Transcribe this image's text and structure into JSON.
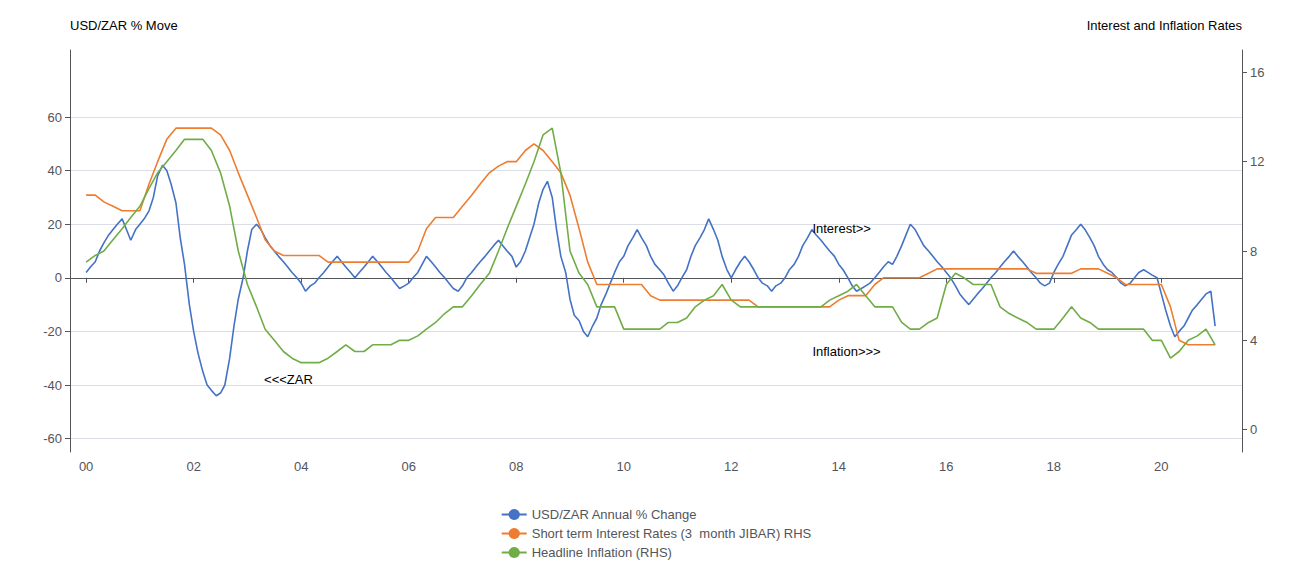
{
  "chart_data": {
    "type": "line",
    "ylabel": "USD/ZAR % Move",
    "y2label": "Interest and Inflation Rates",
    "xlim": [
      1999.7,
      2021.5
    ],
    "xticks": [
      {
        "value": 2000,
        "label": "00"
      },
      {
        "value": 2002,
        "label": "02"
      },
      {
        "value": 2004,
        "label": "04"
      },
      {
        "value": 2006,
        "label": "06"
      },
      {
        "value": 2008,
        "label": "08"
      },
      {
        "value": 2010,
        "label": "10"
      },
      {
        "value": 2012,
        "label": "12"
      },
      {
        "value": 2014,
        "label": "14"
      },
      {
        "value": 2016,
        "label": "16"
      },
      {
        "value": 2018,
        "label": "18"
      },
      {
        "value": 2020,
        "label": "20"
      }
    ],
    "ylim": [
      -65,
      85
    ],
    "yticks": [
      -60,
      -40,
      -20,
      0,
      20,
      40,
      60
    ],
    "y2lim": [
      -1,
      17
    ],
    "y2ticks": [
      0,
      4,
      8,
      12,
      16
    ],
    "grid": true,
    "legend": "bottom",
    "annotations": [
      {
        "text": "<<<ZAR",
        "x": 2003.3,
        "y": -38
      },
      {
        "text": "Interest>>",
        "x": 2013.5,
        "y": 9.0,
        "axis": "y2"
      },
      {
        "text": "Inflation>>>",
        "x": 2013.5,
        "y": 3.5,
        "axis": "y2"
      }
    ],
    "series": [
      {
        "name": "USD/ZAR Annual % Change",
        "color": "#4472C4",
        "x": [
          2000.0,
          2000.08,
          2000.17,
          2000.25,
          2000.33,
          2000.42,
          2000.5,
          2000.58,
          2000.67,
          2000.75,
          2000.83,
          2000.92,
          2001.0,
          2001.08,
          2001.17,
          2001.25,
          2001.33,
          2001.42,
          2001.5,
          2001.58,
          2001.67,
          2001.75,
          2001.83,
          2001.92,
          2002.0,
          2002.08,
          2002.17,
          2002.25,
          2002.33,
          2002.42,
          2002.5,
          2002.58,
          2002.67,
          2002.75,
          2002.83,
          2002.92,
          2003.0,
          2003.08,
          2003.17,
          2003.25,
          2003.33,
          2003.42,
          2003.5,
          2003.58,
          2003.67,
          2003.75,
          2003.83,
          2003.92,
          2004.0,
          2004.08,
          2004.17,
          2004.25,
          2004.33,
          2004.42,
          2004.5,
          2004.58,
          2004.67,
          2004.75,
          2004.83,
          2004.92,
          2005.0,
          2005.08,
          2005.17,
          2005.25,
          2005.33,
          2005.42,
          2005.5,
          2005.58,
          2005.67,
          2005.75,
          2005.83,
          2005.92,
          2006.0,
          2006.08,
          2006.17,
          2006.25,
          2006.33,
          2006.42,
          2006.5,
          2006.58,
          2006.67,
          2006.75,
          2006.83,
          2006.92,
          2007.0,
          2007.08,
          2007.17,
          2007.25,
          2007.33,
          2007.42,
          2007.5,
          2007.58,
          2007.67,
          2007.75,
          2007.83,
          2007.92,
          2008.0,
          2008.08,
          2008.17,
          2008.25,
          2008.33,
          2008.42,
          2008.5,
          2008.58,
          2008.67,
          2008.75,
          2008.83,
          2008.92,
          2009.0,
          2009.08,
          2009.17,
          2009.25,
          2009.33,
          2009.42,
          2009.5,
          2009.58,
          2009.67,
          2009.75,
          2009.83,
          2009.92,
          2010.0,
          2010.08,
          2010.17,
          2010.25,
          2010.33,
          2010.42,
          2010.5,
          2010.58,
          2010.67,
          2010.75,
          2010.83,
          2010.92,
          2011.0,
          2011.08,
          2011.17,
          2011.25,
          2011.33,
          2011.42,
          2011.5,
          2011.58,
          2011.67,
          2011.75,
          2011.83,
          2011.92,
          2012.0,
          2012.08,
          2012.17,
          2012.25,
          2012.33,
          2012.42,
          2012.5,
          2012.58,
          2012.67,
          2012.75,
          2012.83,
          2012.92,
          2013.0,
          2013.08,
          2013.17,
          2013.25,
          2013.33,
          2013.42,
          2013.5,
          2013.58,
          2013.67,
          2013.75,
          2013.83,
          2013.92,
          2014.0,
          2014.08,
          2014.17,
          2014.25,
          2014.33,
          2014.42,
          2014.5,
          2014.58,
          2014.67,
          2014.75,
          2014.83,
          2014.92,
          2015.0,
          2015.08,
          2015.17,
          2015.25,
          2015.33,
          2015.42,
          2015.5,
          2015.58,
          2015.67,
          2015.75,
          2015.83,
          2015.92,
          2016.0,
          2016.08,
          2016.17,
          2016.25,
          2016.33,
          2016.42,
          2016.5,
          2016.58,
          2016.67,
          2016.75,
          2016.83,
          2016.92,
          2017.0,
          2017.08,
          2017.17,
          2017.25,
          2017.33,
          2017.42,
          2017.5,
          2017.58,
          2017.67,
          2017.75,
          2017.83,
          2017.92,
          2018.0,
          2018.08,
          2018.17,
          2018.25,
          2018.33,
          2018.42,
          2018.5,
          2018.58,
          2018.67,
          2018.75,
          2018.83,
          2018.92,
          2019.0,
          2019.08,
          2019.17,
          2019.25,
          2019.33,
          2019.42,
          2019.5,
          2019.58,
          2019.67,
          2019.75,
          2019.83,
          2019.92,
          2020.0,
          2020.08,
          2020.17,
          2020.25,
          2020.33,
          2020.42,
          2020.5,
          2020.58,
          2020.67,
          2020.75,
          2020.83,
          2020.92,
          2021.0
        ],
        "values": [
          2,
          4,
          6,
          10,
          13,
          16,
          18,
          20,
          22,
          18,
          14,
          18,
          20,
          22,
          25,
          30,
          38,
          42,
          40,
          35,
          28,
          15,
          5,
          -10,
          -20,
          -28,
          -35,
          -40,
          -42,
          -44,
          -43,
          -40,
          -30,
          -18,
          -8,
          0,
          10,
          18,
          20,
          18,
          15,
          12,
          10,
          8,
          6,
          4,
          2,
          0,
          -2,
          -5,
          -3,
          -2,
          0,
          2,
          4,
          6,
          8,
          6,
          4,
          2,
          0,
          2,
          4,
          6,
          8,
          6,
          4,
          2,
          0,
          -2,
          -4,
          -3,
          -2,
          0,
          2,
          5,
          8,
          6,
          4,
          2,
          0,
          -2,
          -4,
          -5,
          -3,
          0,
          2,
          4,
          6,
          8,
          10,
          12,
          14,
          12,
          10,
          8,
          4,
          6,
          10,
          15,
          20,
          28,
          33,
          36,
          30,
          18,
          8,
          2,
          -8,
          -14,
          -16,
          -20,
          -22,
          -18,
          -15,
          -10,
          -6,
          -2,
          2,
          6,
          8,
          12,
          15,
          18,
          15,
          12,
          8,
          5,
          3,
          1,
          -2,
          -5,
          -3,
          0,
          3,
          8,
          12,
          15,
          18,
          22,
          18,
          14,
          8,
          3,
          0,
          3,
          6,
          8,
          6,
          3,
          0,
          -2,
          -3,
          -5,
          -3,
          -2,
          0,
          3,
          5,
          8,
          12,
          15,
          18,
          16,
          14,
          12,
          10,
          8,
          5,
          3,
          0,
          -3,
          -5,
          -4,
          -3,
          -2,
          0,
          2,
          4,
          6,
          5,
          8,
          12,
          16,
          20,
          18,
          15,
          12,
          10,
          8,
          6,
          4,
          2,
          0,
          -3,
          -6,
          -8,
          -10,
          -8,
          -6,
          -4,
          -2,
          0,
          2,
          4,
          6,
          8,
          10,
          8,
          6,
          4,
          2,
          0,
          -2,
          -3,
          -2,
          2,
          5,
          8,
          12,
          16,
          18,
          20,
          18,
          15,
          12,
          8,
          5,
          3,
          2,
          0,
          -2,
          -3,
          -2,
          0,
          2,
          3,
          2,
          1,
          0,
          -6,
          -12,
          -18,
          -22,
          -20,
          -18,
          -15,
          -12,
          -10,
          -8,
          -6,
          -5,
          -18
        ]
      },
      {
        "name": "Short term Interest Rates (3  month JIBAR) RHS",
        "color": "#ED7D31",
        "axis": "y2",
        "x": [
          2000.0,
          2000.17,
          2000.33,
          2000.5,
          2000.67,
          2000.83,
          2001.0,
          2001.17,
          2001.33,
          2001.5,
          2001.67,
          2001.83,
          2002.0,
          2002.17,
          2002.33,
          2002.5,
          2002.67,
          2002.83,
          2003.0,
          2003.17,
          2003.33,
          2003.5,
          2003.67,
          2003.83,
          2004.0,
          2004.17,
          2004.33,
          2004.5,
          2004.67,
          2004.83,
          2005.0,
          2005.17,
          2005.33,
          2005.5,
          2005.67,
          2005.83,
          2006.0,
          2006.17,
          2006.33,
          2006.5,
          2006.67,
          2006.83,
          2007.0,
          2007.17,
          2007.33,
          2007.5,
          2007.67,
          2007.83,
          2008.0,
          2008.17,
          2008.33,
          2008.5,
          2008.67,
          2008.83,
          2009.0,
          2009.17,
          2009.33,
          2009.5,
          2009.67,
          2009.83,
          2010.0,
          2010.17,
          2010.33,
          2010.5,
          2010.67,
          2010.83,
          2011.0,
          2011.17,
          2011.33,
          2011.5,
          2011.67,
          2011.83,
          2012.0,
          2012.17,
          2012.33,
          2012.5,
          2012.67,
          2012.83,
          2013.0,
          2013.17,
          2013.33,
          2013.5,
          2013.67,
          2013.83,
          2014.0,
          2014.17,
          2014.33,
          2014.5,
          2014.67,
          2014.83,
          2015.0,
          2015.17,
          2015.33,
          2015.5,
          2015.67,
          2015.83,
          2016.0,
          2016.17,
          2016.33,
          2016.5,
          2016.67,
          2016.83,
          2017.0,
          2017.17,
          2017.33,
          2017.5,
          2017.67,
          2017.83,
          2018.0,
          2018.17,
          2018.33,
          2018.5,
          2018.67,
          2018.83,
          2019.0,
          2019.17,
          2019.33,
          2019.5,
          2019.67,
          2019.83,
          2020.0,
          2020.17,
          2020.33,
          2020.5,
          2020.67,
          2020.83,
          2021.0
        ],
        "values": [
          10.5,
          10.5,
          10.2,
          10.0,
          9.8,
          9.8,
          9.8,
          11.0,
          12.0,
          13.0,
          13.5,
          13.5,
          13.5,
          13.5,
          13.5,
          13.2,
          12.5,
          11.5,
          10.5,
          9.5,
          8.5,
          8.0,
          7.8,
          7.8,
          7.8,
          7.8,
          7.8,
          7.5,
          7.5,
          7.5,
          7.5,
          7.5,
          7.5,
          7.5,
          7.5,
          7.5,
          7.5,
          8.0,
          9.0,
          9.5,
          9.5,
          9.5,
          10.0,
          10.5,
          11.0,
          11.5,
          11.8,
          12.0,
          12.0,
          12.5,
          12.8,
          12.5,
          12.0,
          11.5,
          10.5,
          9.0,
          7.5,
          6.5,
          6.5,
          6.5,
          6.5,
          6.5,
          6.5,
          6.0,
          5.8,
          5.8,
          5.8,
          5.8,
          5.8,
          5.8,
          5.8,
          5.8,
          5.8,
          5.8,
          5.8,
          5.5,
          5.5,
          5.5,
          5.5,
          5.5,
          5.5,
          5.5,
          5.5,
          5.5,
          5.8,
          6.0,
          6.0,
          6.0,
          6.5,
          6.8,
          6.8,
          6.8,
          6.8,
          6.8,
          7.0,
          7.2,
          7.2,
          7.2,
          7.2,
          7.2,
          7.2,
          7.2,
          7.2,
          7.2,
          7.2,
          7.2,
          7.0,
          7.0,
          7.0,
          7.0,
          7.0,
          7.2,
          7.2,
          7.2,
          7.0,
          6.8,
          6.5,
          6.5,
          6.5,
          6.5,
          6.5,
          5.5,
          4.0,
          3.8,
          3.8,
          3.8,
          3.8
        ]
      },
      {
        "name": "Headline Inflation (RHS)",
        "color": "#70AD47",
        "axis": "y2",
        "x": [
          2000.0,
          2000.17,
          2000.33,
          2000.5,
          2000.67,
          2000.83,
          2001.0,
          2001.17,
          2001.33,
          2001.5,
          2001.67,
          2001.83,
          2002.0,
          2002.17,
          2002.33,
          2002.5,
          2002.67,
          2002.83,
          2003.0,
          2003.17,
          2003.33,
          2003.5,
          2003.67,
          2003.83,
          2004.0,
          2004.17,
          2004.33,
          2004.5,
          2004.67,
          2004.83,
          2005.0,
          2005.17,
          2005.33,
          2005.5,
          2005.67,
          2005.83,
          2006.0,
          2006.17,
          2006.33,
          2006.5,
          2006.67,
          2006.83,
          2007.0,
          2007.17,
          2007.33,
          2007.5,
          2007.67,
          2007.83,
          2008.0,
          2008.17,
          2008.33,
          2008.5,
          2008.67,
          2008.83,
          2009.0,
          2009.17,
          2009.33,
          2009.5,
          2009.67,
          2009.83,
          2010.0,
          2010.17,
          2010.33,
          2010.5,
          2010.67,
          2010.83,
          2011.0,
          2011.17,
          2011.33,
          2011.5,
          2011.67,
          2011.83,
          2012.0,
          2012.17,
          2012.33,
          2012.5,
          2012.67,
          2012.83,
          2013.0,
          2013.17,
          2013.33,
          2013.5,
          2013.67,
          2013.83,
          2014.0,
          2014.17,
          2014.33,
          2014.5,
          2014.67,
          2014.83,
          2015.0,
          2015.17,
          2015.33,
          2015.5,
          2015.67,
          2015.83,
          2016.0,
          2016.17,
          2016.33,
          2016.5,
          2016.67,
          2016.83,
          2017.0,
          2017.17,
          2017.33,
          2017.5,
          2017.67,
          2017.83,
          2018.0,
          2018.17,
          2018.33,
          2018.5,
          2018.67,
          2018.83,
          2019.0,
          2019.17,
          2019.33,
          2019.5,
          2019.67,
          2019.83,
          2020.0,
          2020.17,
          2020.33,
          2020.5,
          2020.67,
          2020.83,
          2021.0
        ],
        "values": [
          7.5,
          7.8,
          8.0,
          8.5,
          9.0,
          9.5,
          10.0,
          10.8,
          11.5,
          12.0,
          12.5,
          13.0,
          13.0,
          13.0,
          12.5,
          11.5,
          10.0,
          8.0,
          6.5,
          5.5,
          4.5,
          4.0,
          3.5,
          3.2,
          3.0,
          3.0,
          3.0,
          3.2,
          3.5,
          3.8,
          3.5,
          3.5,
          3.8,
          3.8,
          3.8,
          4.0,
          4.0,
          4.2,
          4.5,
          4.8,
          5.2,
          5.5,
          5.5,
          6.0,
          6.5,
          7.0,
          8.0,
          9.0,
          10.0,
          11.0,
          12.0,
          13.2,
          13.5,
          11.5,
          8.0,
          7.0,
          6.5,
          5.5,
          5.5,
          5.5,
          4.5,
          4.5,
          4.5,
          4.5,
          4.5,
          4.8,
          4.8,
          5.0,
          5.5,
          5.8,
          6.0,
          6.5,
          5.8,
          5.5,
          5.5,
          5.5,
          5.5,
          5.5,
          5.5,
          5.5,
          5.5,
          5.5,
          5.5,
          5.8,
          6.0,
          6.2,
          6.5,
          6.0,
          5.5,
          5.5,
          5.5,
          4.8,
          4.5,
          4.5,
          4.8,
          5.0,
          6.5,
          7.0,
          6.8,
          6.5,
          6.5,
          6.5,
          5.5,
          5.2,
          5.0,
          4.8,
          4.5,
          4.5,
          4.5,
          5.0,
          5.5,
          5.0,
          4.8,
          4.5,
          4.5,
          4.5,
          4.5,
          4.5,
          4.5,
          4.0,
          4.0,
          3.2,
          3.5,
          4.0,
          4.2,
          4.5,
          3.8
        ]
      }
    ]
  }
}
